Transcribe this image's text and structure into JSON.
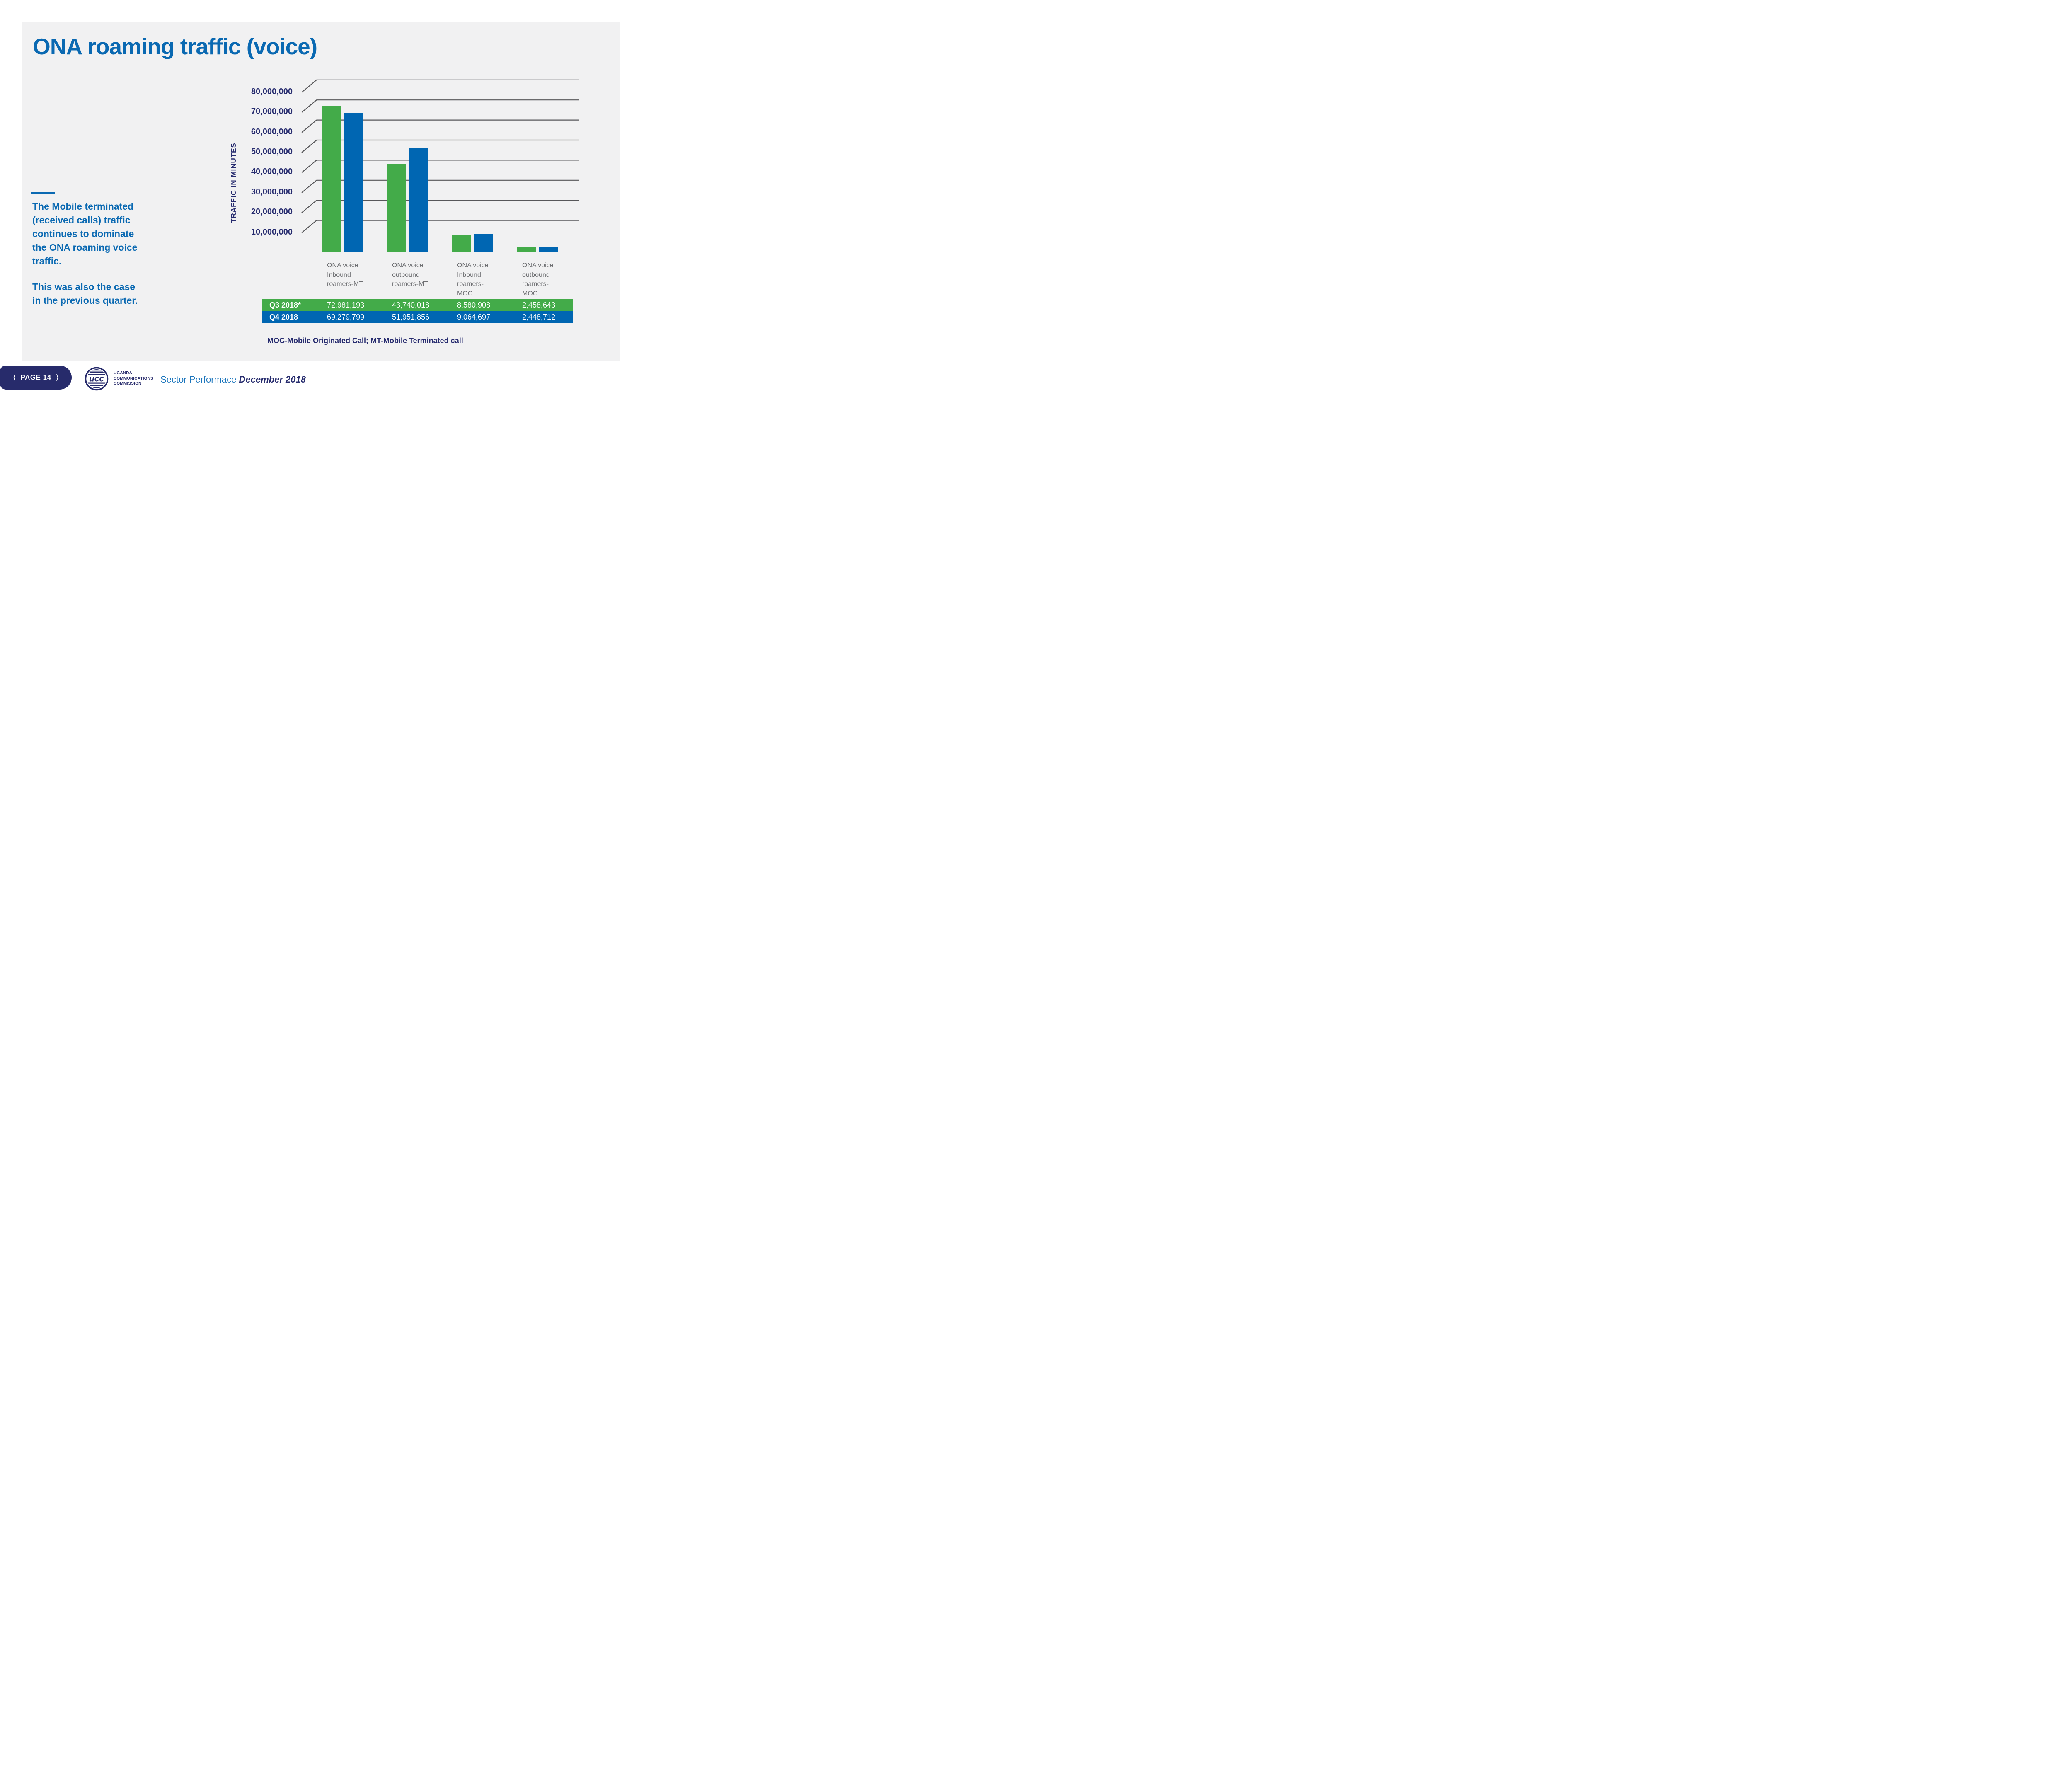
{
  "slide": {
    "title": "ONA roaming traffic (voice)",
    "commentary": {
      "para1": "The Mobile terminated\n(received calls) traffic\ncontinues to dominate\nthe ONA roaming voice\ntraffic.",
      "para2": "This was also the case\nin the previous quarter."
    }
  },
  "chart_data": {
    "type": "bar",
    "title": "",
    "xlabel": "",
    "ylabel": "TRAFFIC IN MINUTES",
    "ylim": [
      0,
      80000000
    ],
    "grid": true,
    "legend_position": "table-below",
    "yticks": [
      {
        "value": 10000000,
        "label": "10,000,000"
      },
      {
        "value": 20000000,
        "label": "20,000,000"
      },
      {
        "value": 30000000,
        "label": "30,000,000"
      },
      {
        "value": 40000000,
        "label": "40,000,000"
      },
      {
        "value": 50000000,
        "label": "50,000,000"
      },
      {
        "value": 60000000,
        "label": "60,000,000"
      },
      {
        "value": 70000000,
        "label": "70,000,000"
      },
      {
        "value": 80000000,
        "label": "80,000,000"
      }
    ],
    "categories": [
      {
        "label": "ONA voice Inbound roamers-MT",
        "lines": "ONA voice\nInbound\nroamers-MT"
      },
      {
        "label": "ONA voice outbound roamers-MT",
        "lines": "ONA voice\noutbound\nroamers-MT"
      },
      {
        "label": "ONA voice Inbound roamers-MOC",
        "lines": "ONA voice\nInbound\nroamers-\nMOC"
      },
      {
        "label": "ONA voice outbound roamers-MOC",
        "lines": "ONA voice\noutbound\nroamers-\nMOC"
      }
    ],
    "series": [
      {
        "name": "Q3 2018*",
        "color": "#43AB49",
        "values": [
          72981193,
          43740018,
          8580908,
          2458643
        ],
        "labels": [
          "72,981,193",
          "43,740,018",
          "8,580,908",
          "2,458,643"
        ]
      },
      {
        "name": "Q4 2018",
        "color": "#0066B2",
        "values": [
          69279799,
          51951856,
          9064697,
          2448712
        ],
        "labels": [
          "69,279,799",
          "51,951,856",
          "9,064,697",
          "2,448,712"
        ]
      }
    ],
    "note": "MOC-Mobile Originated Call; MT-Mobile Terminated call"
  },
  "footer": {
    "prev_icon": "⟨",
    "page_label": "PAGE 14",
    "next_icon": "⟩",
    "logo_text": "ucc",
    "org_lines": [
      "UGANDA",
      "COMMUNICATIONS",
      "COMMISSION"
    ],
    "caption_regular": "Sector Performace ",
    "caption_emphasis": "December 2018"
  },
  "colors": {
    "panel_bg": "#F1F1F2",
    "brand_blue": "#0A69B2",
    "navy": "#272C6F",
    "pill_navy": "#272B6B",
    "caption_blue": "#1B75BC",
    "series_q3_green": "#43AB49",
    "series_q4_blue": "#0066B2",
    "gridline_gray": "#57575A",
    "category_gray": "#6D6E71"
  }
}
